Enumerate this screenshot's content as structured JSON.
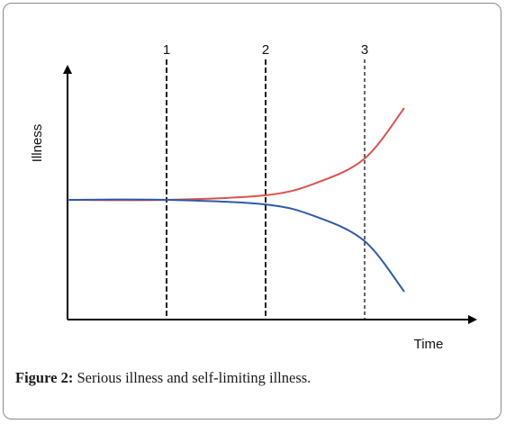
{
  "chart_data": {
    "type": "line",
    "xlabel": "Time",
    "ylabel": "Illness",
    "markers": [
      {
        "label": "1",
        "x": 1
      },
      {
        "label": "2",
        "x": 2
      },
      {
        "label": "3",
        "x": 3
      }
    ],
    "series": [
      {
        "color": "#d9534f",
        "points": [
          [
            0,
            0
          ],
          [
            1,
            0
          ],
          [
            2,
            0.05
          ],
          [
            2.5,
            0.18
          ],
          [
            3,
            0.45
          ],
          [
            3.4,
            1
          ]
        ]
      },
      {
        "color": "#2e5aa8",
        "points": [
          [
            0,
            0
          ],
          [
            1,
            0
          ],
          [
            2,
            -0.05
          ],
          [
            2.5,
            -0.18
          ],
          [
            3,
            -0.45
          ],
          [
            3.4,
            -1
          ]
        ]
      }
    ],
    "grid": false,
    "legend": "none"
  },
  "caption": {
    "lead": "Figure 2:",
    "text": " Serious illness and self-limiting illness."
  }
}
